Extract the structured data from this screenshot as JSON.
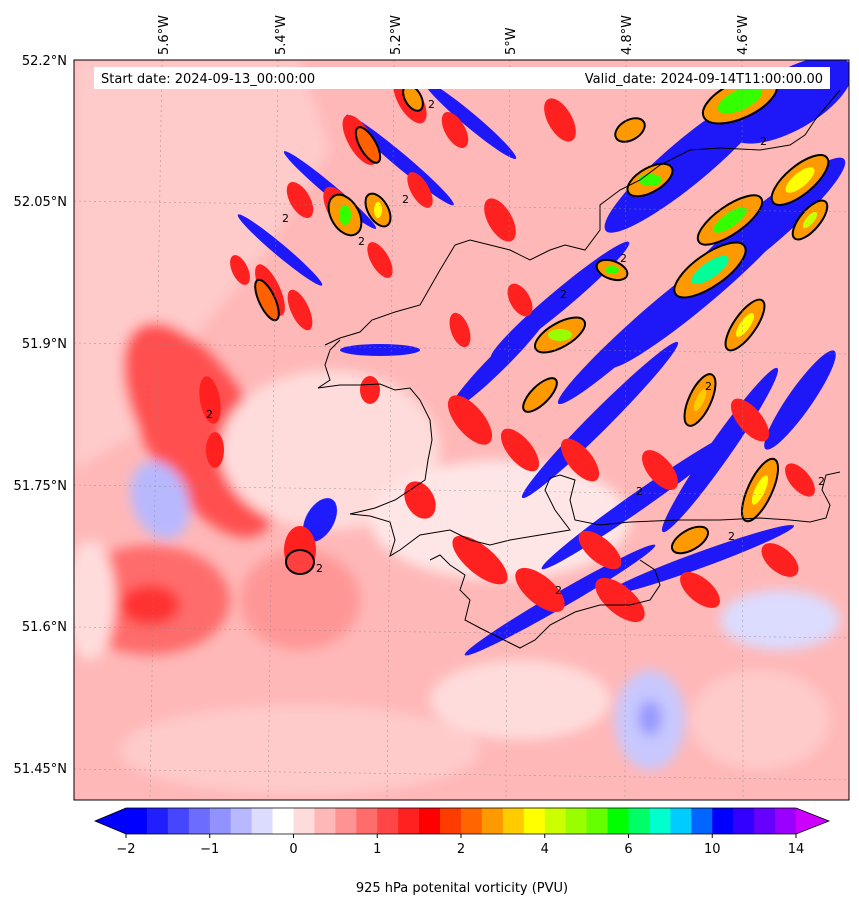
{
  "header": {
    "start_date": "Start date: 2024-09-13_00:00:00",
    "valid_date": "Valid_date: 2024-09-14T11:00:00.00"
  },
  "axes": {
    "lon_labels": [
      "5.6°W",
      "5.4°W",
      "5.2°W",
      "5°W",
      "4.8°W",
      "4.6°W"
    ],
    "lat_labels": [
      "52.2°N",
      "52.05°N",
      "51.9°N",
      "51.75°N",
      "51.6°N",
      "51.45°N"
    ]
  },
  "contour_label": "2",
  "colorbar": {
    "title": "925 hPa potenital vorticity (PVU)",
    "tick_labels": [
      "−2",
      "−1",
      "0",
      "1",
      "2",
      "4",
      "6",
      "10",
      "14"
    ],
    "colors": [
      "#0000ff",
      "#2020ff",
      "#4646ff",
      "#6c6cff",
      "#9292ff",
      "#b8b8ff",
      "#dcdcff",
      "#ffffff",
      "#ffdcdc",
      "#ffb8b8",
      "#ff9292",
      "#ff6c6c",
      "#ff4646",
      "#ff2020",
      "#ff0000",
      "#ff3c00",
      "#ff6600",
      "#ff9900",
      "#ffcc00",
      "#ffff00",
      "#ccff00",
      "#99ff00",
      "#66ff00",
      "#00ff00",
      "#00ff66",
      "#00ffcc",
      "#00ccff",
      "#0066ff",
      "#0000ff",
      "#3300ff",
      "#6600ff",
      "#9900ff"
    ],
    "under_color": "#0000ff",
    "over_color": "#cc00ff"
  }
}
